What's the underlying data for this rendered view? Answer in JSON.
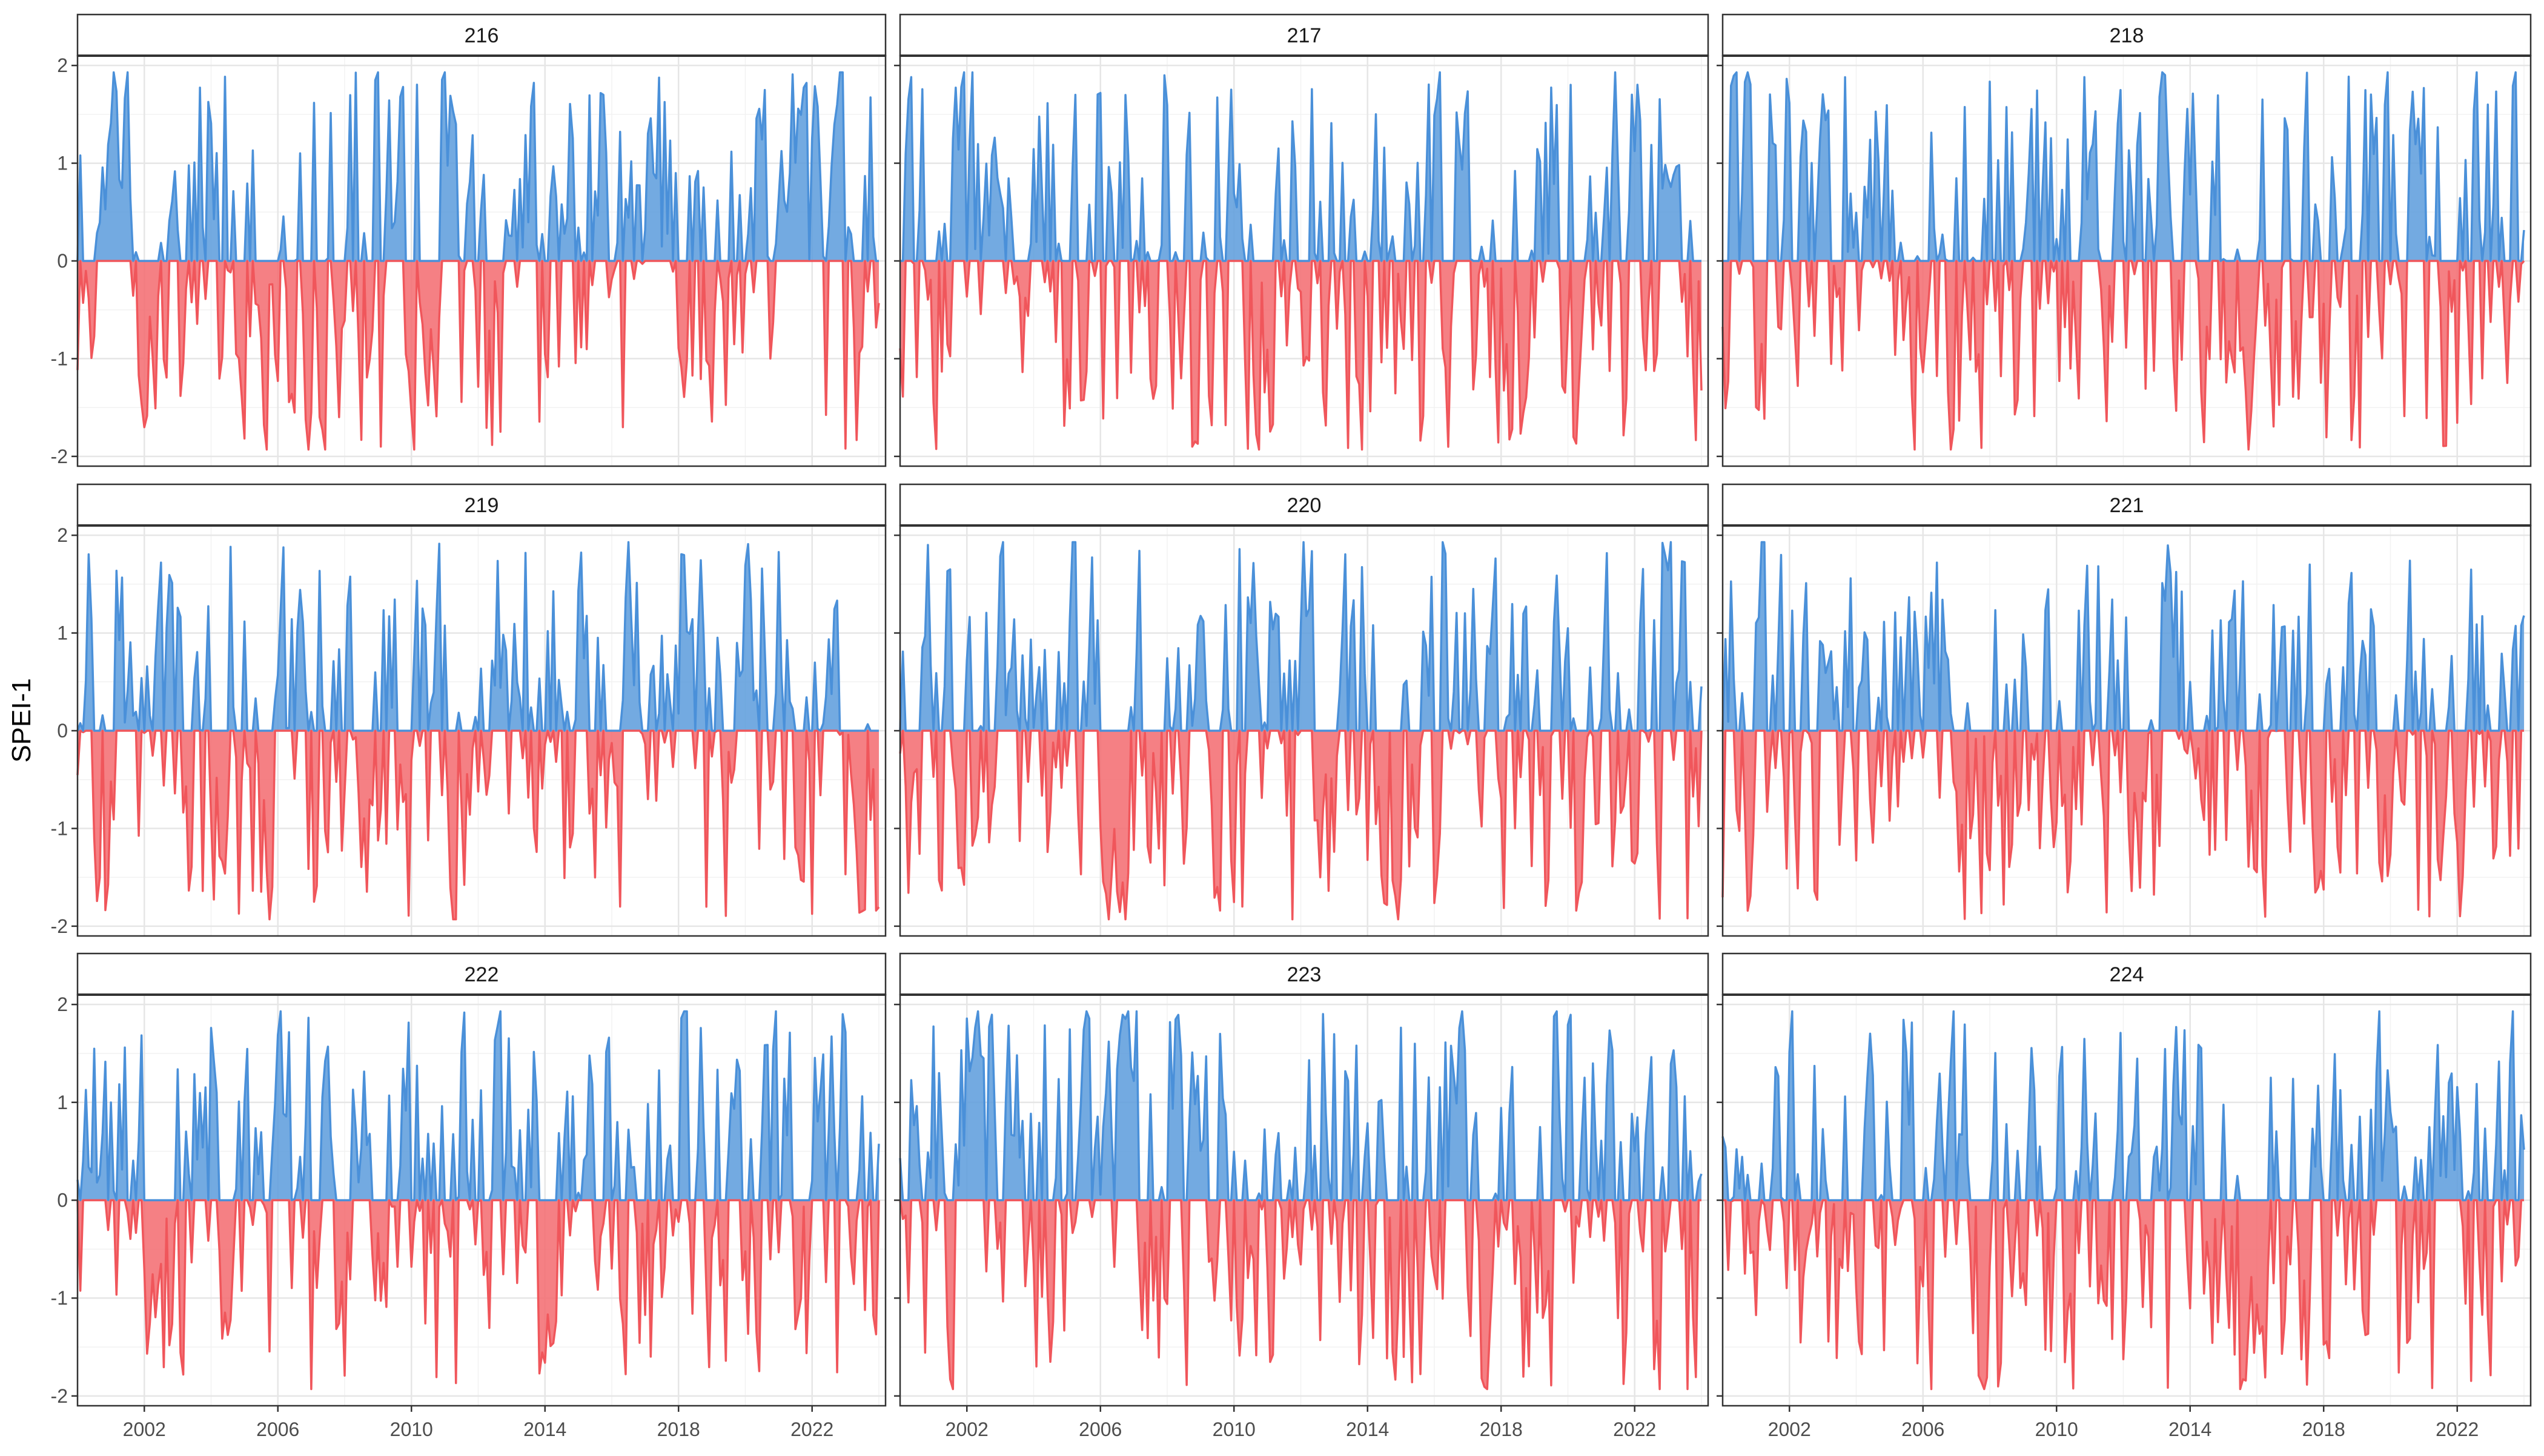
{
  "chart_data": {
    "type": "area",
    "ylabel": "SPEI-1",
    "xlabel": "",
    "xlim": [
      2000.0,
      2024.2
    ],
    "ylim": [
      -2.1,
      2.1
    ],
    "x_ticks": [
      2002,
      2006,
      2010,
      2014,
      2018,
      2022
    ],
    "y_ticks": [
      -2,
      -1,
      0,
      1,
      2
    ],
    "grid": true,
    "colors": {
      "positive": "#4A90D9",
      "negative": "#F0565B",
      "positive_fill": "#5B9BDC",
      "negative_fill": "#F36A6E"
    },
    "panels": [
      {
        "name": "216",
        "seed": 216,
        "monthly": true
      },
      {
        "name": "217",
        "seed": 217,
        "monthly": true
      },
      {
        "name": "218",
        "seed": 218,
        "monthly": true
      },
      {
        "name": "219",
        "seed": 219,
        "monthly": true
      },
      {
        "name": "220",
        "seed": 220,
        "monthly": true
      },
      {
        "name": "221",
        "seed": 221,
        "monthly": true
      },
      {
        "name": "222",
        "seed": 222,
        "monthly": true
      },
      {
        "name": "223",
        "seed": 223,
        "monthly": true
      },
      {
        "name": "224",
        "seed": 224,
        "monthly": true
      }
    ]
  }
}
